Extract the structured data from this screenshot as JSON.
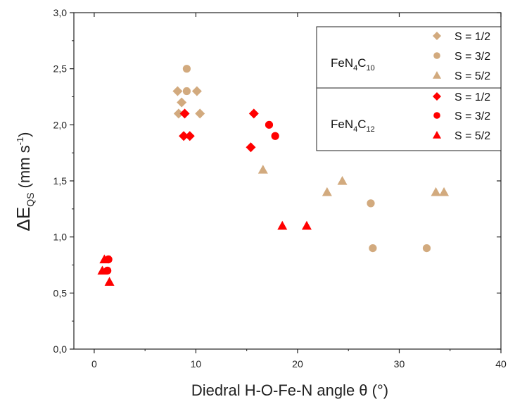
{
  "chart_data": {
    "type": "scatter",
    "title": "",
    "xlabel": "Diedral H-O-Fe-N angle  θ (°)",
    "ylabel_main": "ΔE",
    "ylabel_sub": "QS",
    "ylabel_unit": " (mm s",
    "ylabel_sup": "-1",
    "ylabel_close": ")",
    "xlim": [
      -2,
      40
    ],
    "ylim": [
      0,
      3
    ],
    "xticks": [
      0,
      10,
      20,
      30,
      40
    ],
    "xtick_labels": [
      "0",
      "10",
      "20",
      "30",
      "40"
    ],
    "yticks": [
      0,
      0.5,
      1,
      1.5,
      2,
      2.5,
      3
    ],
    "ytick_labels": [
      "0,0",
      "0,5",
      "1,0",
      "1,5",
      "2,0",
      "2,5",
      "3,0"
    ],
    "grid": false,
    "legend_position": "top-right",
    "groups": [
      {
        "label_base": "FeN",
        "label_sub1": "4",
        "label_mid": "C",
        "label_sub2": "10",
        "color": "#d2aa7e"
      },
      {
        "label_base": "FeN",
        "label_sub1": "4",
        "label_mid": "C",
        "label_sub2": "12",
        "color": "#ff0000"
      }
    ],
    "series": [
      {
        "name": "S = 1/2",
        "group": 0,
        "marker": "diamond",
        "color": "#d2aa7e",
        "points": [
          [
            8.2,
            2.3
          ],
          [
            8.6,
            2.2
          ],
          [
            8.3,
            2.1
          ],
          [
            10.1,
            2.3
          ],
          [
            10.4,
            2.1
          ]
        ]
      },
      {
        "name": "S = 3/2",
        "group": 0,
        "marker": "circle",
        "color": "#d2aa7e",
        "points": [
          [
            9.1,
            2.5
          ],
          [
            9.1,
            2.3
          ],
          [
            27.2,
            1.3
          ],
          [
            27.4,
            0.9
          ],
          [
            32.7,
            0.9
          ]
        ]
      },
      {
        "name": "S = 5/2",
        "group": 0,
        "marker": "triangle",
        "color": "#d2aa7e",
        "points": [
          [
            16.6,
            1.6
          ],
          [
            22.9,
            1.4
          ],
          [
            24.4,
            1.5
          ],
          [
            33.6,
            1.4
          ],
          [
            34.4,
            1.4
          ]
        ]
      },
      {
        "name": "S = 1/2",
        "group": 1,
        "marker": "diamond",
        "color": "#ff0000",
        "points": [
          [
            8.9,
            2.1
          ],
          [
            8.8,
            1.9
          ],
          [
            9.4,
            1.9
          ],
          [
            15.4,
            1.8
          ],
          [
            15.7,
            2.1
          ]
        ]
      },
      {
        "name": "S = 3/2",
        "group": 1,
        "marker": "circle",
        "color": "#ff0000",
        "points": [
          [
            1.4,
            0.8
          ],
          [
            1.3,
            0.7
          ],
          [
            17.2,
            2.0
          ],
          [
            17.8,
            1.9
          ]
        ]
      },
      {
        "name": "S = 5/2",
        "group": 1,
        "marker": "triangle",
        "color": "#ff0000",
        "points": [
          [
            1.0,
            0.8
          ],
          [
            0.8,
            0.7
          ],
          [
            1.5,
            0.6
          ],
          [
            18.5,
            1.1
          ],
          [
            20.9,
            1.1
          ]
        ]
      }
    ]
  }
}
